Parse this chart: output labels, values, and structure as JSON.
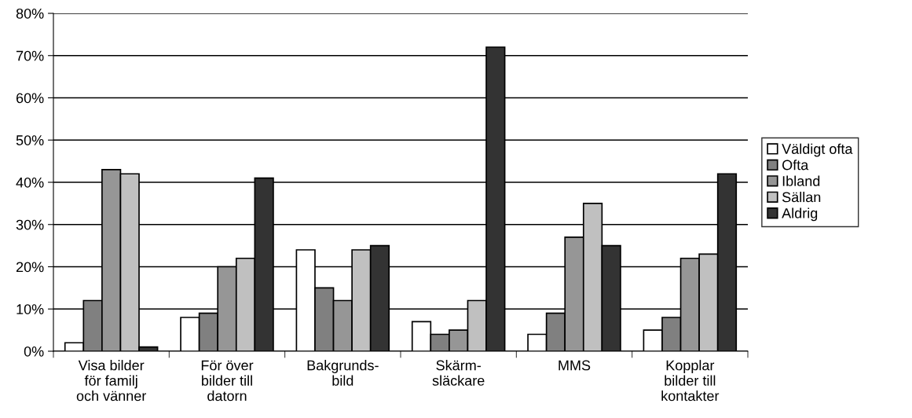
{
  "chart_data": {
    "type": "bar",
    "categories": [
      "Visa bilder\nför familj\noch vänner",
      "För över\nbilder till\ndatorn",
      "Bakgrunds-\nbild",
      "Skärm-\nsläckare",
      "MMS",
      "Kopplar\nbilder till\nkontakter"
    ],
    "series": [
      {
        "name": "Väldigt ofta",
        "color": "#ffffff",
        "values": [
          2,
          8,
          24,
          7,
          4,
          5
        ]
      },
      {
        "name": "Ofta",
        "color": "#808080",
        "values": [
          12,
          9,
          15,
          4,
          9,
          8
        ]
      },
      {
        "name": "Ibland",
        "color": "#969696",
        "values": [
          43,
          20,
          12,
          5,
          27,
          22
        ]
      },
      {
        "name": "Sällan",
        "color": "#c0c0c0",
        "values": [
          42,
          22,
          24,
          12,
          35,
          23
        ]
      },
      {
        "name": "Aldrig",
        "color": "#333333",
        "values": [
          1,
          41,
          25,
          72,
          25,
          42
        ]
      }
    ],
    "ylim": [
      0,
      80
    ],
    "yticks": [
      {
        "value": 0,
        "label": "0%"
      },
      {
        "value": 10,
        "label": "10%"
      },
      {
        "value": 20,
        "label": "20%"
      },
      {
        "value": 30,
        "label": "30%"
      },
      {
        "value": 40,
        "label": "40%"
      },
      {
        "value": 50,
        "label": "50%"
      },
      {
        "value": 60,
        "label": "60%"
      },
      {
        "value": 70,
        "label": "70%"
      },
      {
        "value": 80,
        "label": "80%"
      }
    ],
    "grid": "y",
    "legend": "right"
  }
}
